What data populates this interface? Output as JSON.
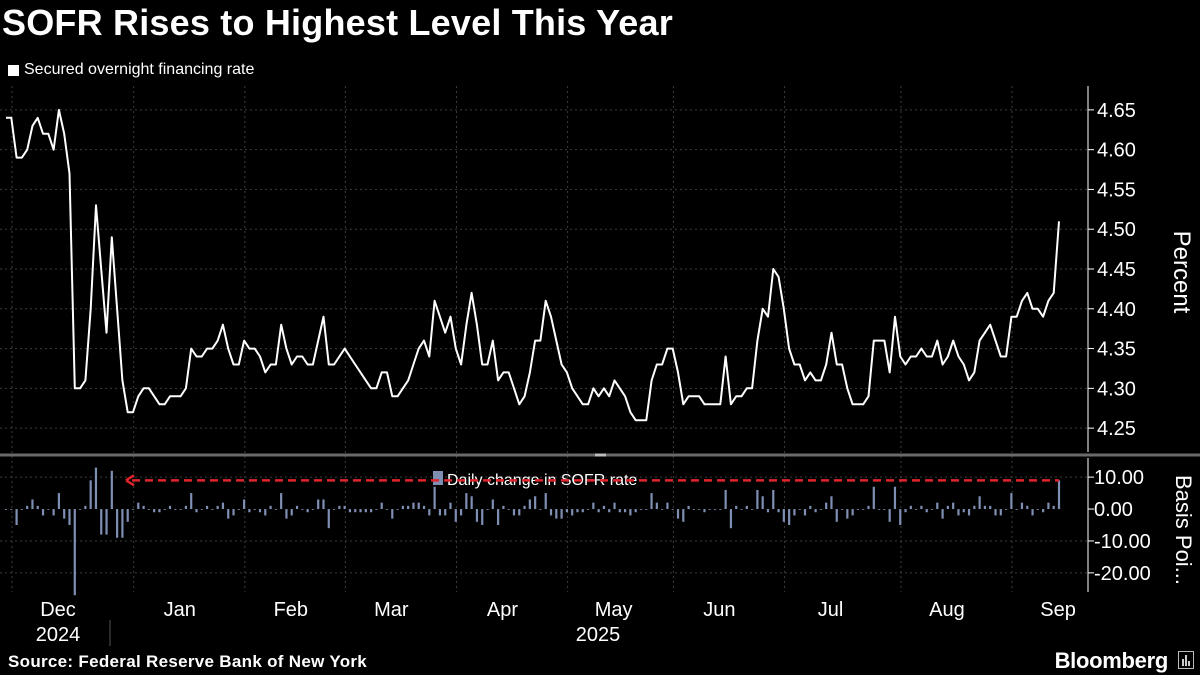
{
  "title": "SOFR Rises to Highest Level This Year",
  "source": "Source: Federal Reserve Bank of New York",
  "brand": "Bloomberg",
  "brand_icon": "bloomberg-terminal-icon",
  "colors": {
    "background": "#000000",
    "line": "#ffffff",
    "bar": "#7f8fb3",
    "annotation": "#e0242b",
    "grid": "#3c3c3c"
  },
  "chart_data": [
    {
      "type": "line",
      "title": "SOFR Rises to Highest Level This Year",
      "legend": "Secured overnight financing rate",
      "ylabel": "Percent",
      "ylim": [
        4.22,
        4.68
      ],
      "yticks": [
        4.25,
        4.3,
        4.35,
        4.4,
        4.45,
        4.5,
        4.55,
        4.6,
        4.65
      ],
      "ytick_labels": [
        "4.25",
        "4.30",
        "4.35",
        "4.40",
        "4.45",
        "4.50",
        "4.55",
        "4.60",
        "4.65"
      ],
      "grid": true,
      "x_unit": "business day index (0 = 2 Dec 2024)",
      "values": [
        4.64,
        4.64,
        4.59,
        4.59,
        4.6,
        4.63,
        4.64,
        4.62,
        4.62,
        4.6,
        4.65,
        4.62,
        4.57,
        4.3,
        4.3,
        4.31,
        4.4,
        4.53,
        4.45,
        4.37,
        4.49,
        4.4,
        4.31,
        4.27,
        4.27,
        4.29,
        4.3,
        4.3,
        4.29,
        4.28,
        4.28,
        4.29,
        4.29,
        4.29,
        4.3,
        4.35,
        4.34,
        4.34,
        4.35,
        4.35,
        4.36,
        4.38,
        4.35,
        4.33,
        4.33,
        4.36,
        4.35,
        4.35,
        4.34,
        4.32,
        4.33,
        4.33,
        4.38,
        4.35,
        4.33,
        4.34,
        4.34,
        4.33,
        4.33,
        4.36,
        4.39,
        4.33,
        4.33,
        4.34,
        4.35,
        4.34,
        4.33,
        4.32,
        4.31,
        4.3,
        4.3,
        4.32,
        4.32,
        4.29,
        4.29,
        4.3,
        4.31,
        4.33,
        4.35,
        4.36,
        4.34,
        4.41,
        4.39,
        4.37,
        4.39,
        4.35,
        4.33,
        4.38,
        4.42,
        4.38,
        4.33,
        4.33,
        4.36,
        4.31,
        4.32,
        4.32,
        4.3,
        4.28,
        4.29,
        4.32,
        4.36,
        4.36,
        4.41,
        4.39,
        4.36,
        4.33,
        4.32,
        4.3,
        4.29,
        4.28,
        4.28,
        4.3,
        4.29,
        4.3,
        4.29,
        4.31,
        4.3,
        4.29,
        4.27,
        4.26,
        4.26,
        4.26,
        4.31,
        4.33,
        4.33,
        4.35,
        4.35,
        4.32,
        4.28,
        4.29,
        4.29,
        4.29,
        4.28,
        4.28,
        4.28,
        4.28,
        4.34,
        4.28,
        4.29,
        4.29,
        4.3,
        4.3,
        4.36,
        4.4,
        4.39,
        4.45,
        4.44,
        4.4,
        4.35,
        4.33,
        4.33,
        4.31,
        4.32,
        4.31,
        4.31,
        4.33,
        4.37,
        4.33,
        4.33,
        4.3,
        4.28,
        4.28,
        4.28,
        4.29,
        4.36,
        4.36,
        4.36,
        4.32,
        4.39,
        4.34,
        4.33,
        4.34,
        4.34,
        4.35,
        4.34,
        4.34,
        4.36,
        4.33,
        4.34,
        4.36,
        4.34,
        4.33,
        4.31,
        4.32,
        4.36,
        4.37,
        4.38,
        4.36,
        4.34,
        4.34,
        4.39,
        4.39,
        4.41,
        4.42,
        4.4,
        4.4,
        4.39,
        4.41,
        4.42,
        4.51
      ]
    },
    {
      "type": "bar",
      "legend": "Daily change in SOFR rate",
      "ylabel": "Basis Poi...",
      "ylim": [
        -26,
        16
      ],
      "yticks": [
        10,
        0,
        -10,
        -20
      ],
      "ytick_labels": [
        "10.00",
        "0.00",
        "-10.00",
        "-20.00"
      ],
      "grid": true,
      "annotation": "dashed red arrow marking the latest daily change level",
      "x_labels": [
        {
          "month": "Dec",
          "year": "2024",
          "index": 0
        },
        {
          "month": "Jan",
          "year": "",
          "index": 23
        },
        {
          "month": "Feb",
          "year": "",
          "index": 44
        },
        {
          "month": "Mar",
          "year": "",
          "index": 63
        },
        {
          "month": "Apr",
          "year": "2025",
          "index": 84
        },
        {
          "month": "May",
          "year": "",
          "index": 105
        },
        {
          "month": "Jun",
          "year": "",
          "index": 125
        },
        {
          "month": "Jul",
          "year": "",
          "index": 146
        },
        {
          "month": "Aug",
          "year": "",
          "index": 168
        },
        {
          "month": "Sep",
          "year": "",
          "index": 189
        }
      ]
    }
  ]
}
